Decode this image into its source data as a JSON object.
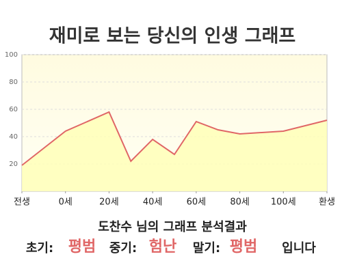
{
  "chart_data": {
    "type": "area",
    "title": "재미로 보는 당신의 인생 그래프",
    "x": [
      -20,
      0,
      20,
      30,
      40,
      50,
      60,
      70,
      80,
      100,
      120
    ],
    "values": [
      19,
      44,
      58,
      22,
      38,
      27,
      51,
      45,
      42,
      44,
      52
    ],
    "color": "#e06666",
    "fill": "#ffffb8",
    "xlim": [
      -20,
      120
    ],
    "xticks": [
      {
        "value": -20,
        "label": "전생"
      },
      {
        "value": 0,
        "label": "0세"
      },
      {
        "value": 20,
        "label": "20세"
      },
      {
        "value": 40,
        "label": "40세"
      },
      {
        "value": 60,
        "label": "60세"
      },
      {
        "value": 80,
        "label": "80세"
      },
      {
        "value": 100,
        "label": "100세"
      },
      {
        "value": 120,
        "label": "환생"
      }
    ],
    "ylim": [
      0,
      100
    ],
    "yticks": [
      20,
      40,
      60,
      80,
      100
    ],
    "grid": true
  },
  "result": {
    "heading": "도찬수 님의 그래프 분석결과",
    "early_label": "초기:",
    "early": "평범",
    "middle_label": "중기:",
    "middle": "험난",
    "late_label": "말기:",
    "late": "평범",
    "ending": "입니다"
  }
}
